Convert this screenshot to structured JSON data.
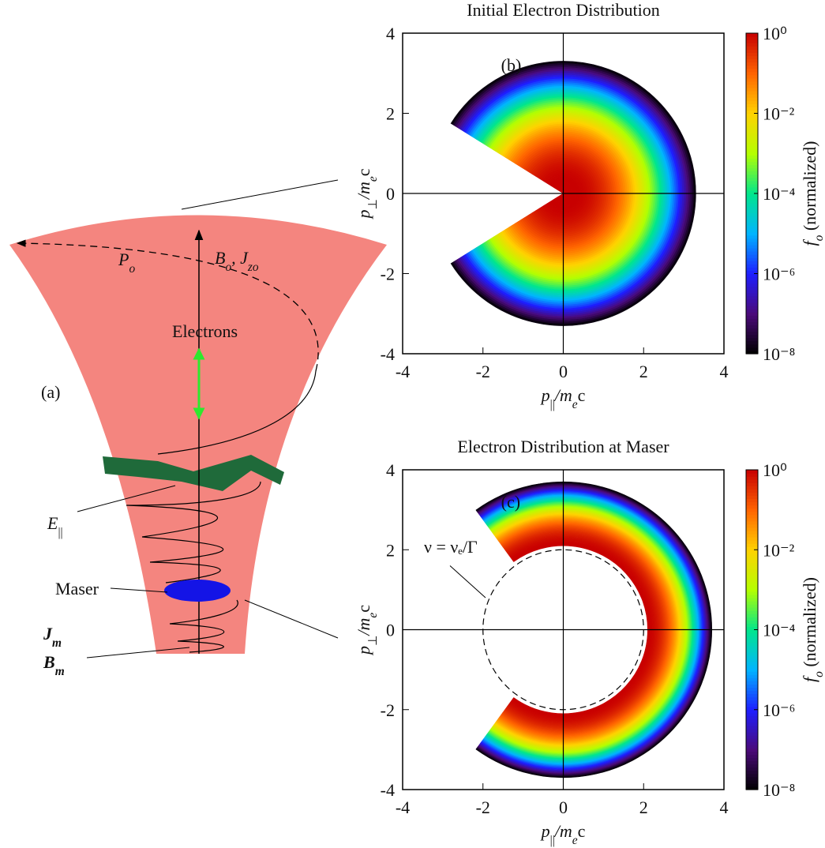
{
  "diagram": {
    "panel_label": "(a)",
    "momentum_label": [
      {
        "text": "P",
        "italic": true
      },
      {
        "text": "o",
        "sub": true,
        "italic": true
      }
    ],
    "field_label": [
      {
        "text": "B",
        "italic": true
      },
      {
        "text": "o",
        "sub": true,
        "italic": true
      },
      {
        "text": ", J",
        "italic": true
      },
      {
        "text": "zo",
        "sub": true,
        "italic": true
      }
    ],
    "electrons_label": [
      {
        "text": "Electrons"
      }
    ],
    "efield_label": [
      {
        "text": "E",
        "italic": true
      },
      {
        "text": "||",
        "sub": true
      }
    ],
    "maser_label": [
      {
        "text": "Maser"
      }
    ],
    "current_label": [
      {
        "text": "J",
        "italic": true,
        "bold": true
      },
      {
        "text": "m",
        "sub": true,
        "italic": true,
        "bold": true
      }
    ],
    "bfield_label": [
      {
        "text": "B",
        "italic": true,
        "bold": true
      },
      {
        "text": "m",
        "sub": true,
        "italic": true,
        "bold": true
      }
    ]
  },
  "chart_data": [
    {
      "type": "heatmap",
      "title": "Initial Electron Distribution",
      "panel_label": "(b)",
      "xlabel": [
        {
          "text": "p",
          "italic": true
        },
        {
          "text": "||",
          "sub": true
        },
        {
          "text": "/m",
          "italic": true
        },
        {
          "text": "e",
          "sub": true,
          "italic": true
        },
        {
          "text": "c"
        }
      ],
      "ylabel": [
        {
          "text": "p",
          "italic": true
        },
        {
          "text": "⊥",
          "sub": true
        },
        {
          "text": "/m",
          "italic": true
        },
        {
          "text": "e",
          "sub": true,
          "italic": true
        },
        {
          "text": "c"
        }
      ],
      "xlim": [
        -4,
        4
      ],
      "xticks": [
        -4,
        -2,
        0,
        2,
        4
      ],
      "ylim": [
        -4,
        4
      ],
      "yticks": [
        -4,
        -2,
        0,
        2,
        4
      ],
      "distribution": {
        "min_momentum": 0,
        "peak_momentum": 0.3,
        "max_momentum": 3.3,
        "loss_cone_half_angle_deg": 32
      },
      "colorbar": {
        "label": [
          {
            "text": "f",
            "italic": true
          },
          {
            "text": "o",
            "sub": true,
            "italic": true
          },
          {
            "text": " (normalized)"
          }
        ],
        "log": true,
        "lim": [
          1e-08,
          1
        ],
        "ticks": [
          {
            "value": 1e-08,
            "label": "10⁻⁸"
          },
          {
            "value": 1e-06,
            "label": "10⁻⁶"
          },
          {
            "value": 0.0001,
            "label": "10⁻⁴"
          },
          {
            "value": 0.01,
            "label": "10⁻²"
          },
          {
            "value": 1,
            "label": "10⁰"
          }
        ],
        "colors": [
          "#000000",
          "#4b0a7a",
          "#1e1eff",
          "#00b4ff",
          "#00e68c",
          "#b4ff00",
          "#ffd200",
          "#ff6400",
          "#c80000"
        ]
      }
    },
    {
      "type": "heatmap",
      "title": "Electron Distribution at Maser",
      "panel_label": "(c)",
      "xlabel": [
        {
          "text": "p",
          "italic": true
        },
        {
          "text": "||",
          "sub": true
        },
        {
          "text": "/m",
          "italic": true
        },
        {
          "text": "e",
          "sub": true,
          "italic": true
        },
        {
          "text": "c"
        }
      ],
      "ylabel": [
        {
          "text": "p",
          "italic": true
        },
        {
          "text": "⊥",
          "sub": true
        },
        {
          "text": "/m",
          "italic": true
        },
        {
          "text": "e",
          "sub": true,
          "italic": true
        },
        {
          "text": "c"
        }
      ],
      "xlim": [
        -4,
        4
      ],
      "xticks": [
        -4,
        -2,
        0,
        2,
        4
      ],
      "ylim": [
        -4,
        4
      ],
      "yticks": [
        -4,
        -2,
        0,
        2,
        4
      ],
      "distribution": {
        "min_momentum": 2.1,
        "peak_momentum": 2.1,
        "max_momentum": 3.7,
        "loss_cone_half_angle_deg": 54
      },
      "annotation": {
        "text": "ν = νₑ/Γ",
        "resonance_radius": 2
      },
      "colorbar": {
        "label": [
          {
            "text": "f",
            "italic": true
          },
          {
            "text": "o",
            "sub": true,
            "italic": true
          },
          {
            "text": " (normalized)"
          }
        ],
        "log": true,
        "lim": [
          1e-08,
          1
        ],
        "ticks": [
          {
            "value": 1e-08,
            "label": "10⁻⁸"
          },
          {
            "value": 1e-06,
            "label": "10⁻⁶"
          },
          {
            "value": 0.0001,
            "label": "10⁻⁴"
          },
          {
            "value": 0.01,
            "label": "10⁻²"
          },
          {
            "value": 1,
            "label": "10⁰"
          }
        ],
        "colors": [
          "#000000",
          "#4b0a7a",
          "#1e1eff",
          "#00b4ff",
          "#00e68c",
          "#b4ff00",
          "#ffd200",
          "#ff6400",
          "#c80000"
        ]
      }
    }
  ]
}
